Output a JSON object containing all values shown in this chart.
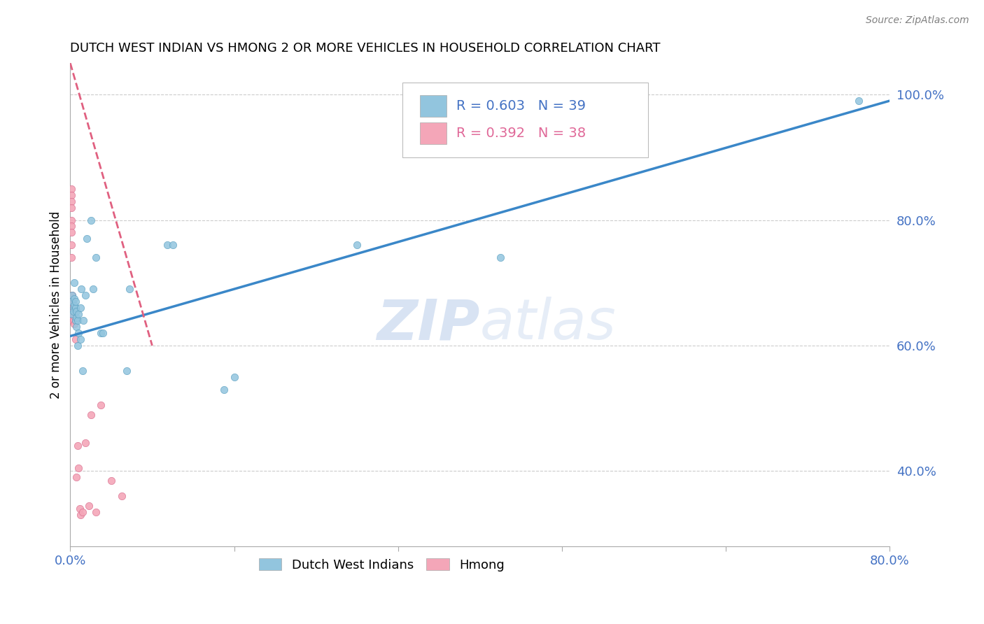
{
  "title": "DUTCH WEST INDIAN VS HMONG 2 OR MORE VEHICLES IN HOUSEHOLD CORRELATION CHART",
  "source": "Source: ZipAtlas.com",
  "xlabel": "",
  "ylabel": "2 or more Vehicles in Household",
  "xlim": [
    0.0,
    0.8
  ],
  "ylim": [
    0.28,
    1.05
  ],
  "xticks": [
    0.0,
    0.16,
    0.32,
    0.48,
    0.64,
    0.8
  ],
  "xtick_labels": [
    "0.0%",
    "",
    "",
    "",
    "",
    "80.0%"
  ],
  "yticks_right": [
    0.4,
    0.6,
    0.8,
    1.0
  ],
  "ytick_right_labels": [
    "40.0%",
    "60.0%",
    "80.0%",
    "100.0%"
  ],
  "blue_R": 0.603,
  "blue_N": 39,
  "pink_R": 0.392,
  "pink_N": 38,
  "blue_color": "#92c5de",
  "blue_edge_color": "#5a9fc0",
  "blue_line_color": "#3a87c8",
  "pink_color": "#f4a6b8",
  "pink_edge_color": "#d97090",
  "pink_line_color": "#e06080",
  "legend_label_blue": "Dutch West Indians",
  "legend_label_pink": "Hmong",
  "watermark_zip": "ZIP",
  "watermark_atlas": "atlas",
  "blue_x": [
    0.001,
    0.002,
    0.002,
    0.003,
    0.003,
    0.004,
    0.004,
    0.004,
    0.005,
    0.005,
    0.005,
    0.006,
    0.006,
    0.006,
    0.007,
    0.007,
    0.008,
    0.008,
    0.01,
    0.01,
    0.011,
    0.012,
    0.013,
    0.015,
    0.016,
    0.02,
    0.022,
    0.025,
    0.03,
    0.032,
    0.055,
    0.058,
    0.095,
    0.1,
    0.15,
    0.16,
    0.28,
    0.42,
    0.77
  ],
  "blue_y": [
    0.67,
    0.68,
    0.65,
    0.66,
    0.655,
    0.665,
    0.675,
    0.7,
    0.64,
    0.66,
    0.67,
    0.63,
    0.645,
    0.655,
    0.6,
    0.64,
    0.62,
    0.65,
    0.61,
    0.66,
    0.69,
    0.56,
    0.64,
    0.68,
    0.77,
    0.8,
    0.69,
    0.74,
    0.62,
    0.62,
    0.56,
    0.69,
    0.76,
    0.76,
    0.53,
    0.55,
    0.76,
    0.74,
    0.99
  ],
  "pink_x": [
    0.001,
    0.001,
    0.001,
    0.001,
    0.001,
    0.001,
    0.001,
    0.001,
    0.001,
    0.002,
    0.002,
    0.002,
    0.002,
    0.002,
    0.002,
    0.002,
    0.002,
    0.002,
    0.003,
    0.003,
    0.003,
    0.004,
    0.004,
    0.005,
    0.005,
    0.006,
    0.007,
    0.008,
    0.009,
    0.01,
    0.012,
    0.015,
    0.018,
    0.02,
    0.025,
    0.03,
    0.04,
    0.05
  ],
  "pink_y": [
    0.85,
    0.84,
    0.83,
    0.82,
    0.8,
    0.79,
    0.78,
    0.76,
    0.74,
    0.67,
    0.66,
    0.65,
    0.645,
    0.64,
    0.66,
    0.67,
    0.68,
    0.66,
    0.65,
    0.64,
    0.66,
    0.635,
    0.655,
    0.61,
    0.64,
    0.39,
    0.44,
    0.405,
    0.34,
    0.33,
    0.335,
    0.445,
    0.345,
    0.49,
    0.335,
    0.505,
    0.385,
    0.36
  ],
  "blue_line_x0": 0.0,
  "blue_line_y0": 0.615,
  "blue_line_x1": 0.8,
  "blue_line_y1": 0.99,
  "pink_line_x0": 0.0,
  "pink_line_y0": 1.05,
  "pink_line_x1": 0.08,
  "pink_line_y1": 0.6
}
